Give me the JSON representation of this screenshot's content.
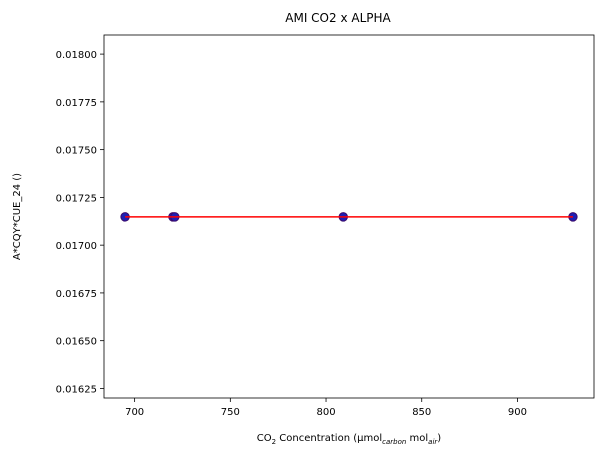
{
  "chart_data": {
    "type": "scatter",
    "title": "AMI CO2 x ALPHA",
    "xlabel": {
      "parts": [
        {
          "text": "CO",
          "style": "normal"
        },
        {
          "text": "2",
          "style": "sub"
        },
        {
          "text": " Concentration (μmol",
          "style": "normal"
        },
        {
          "text": "carbon",
          "style": "sub-italic"
        },
        {
          "text": " mol",
          "style": "normal"
        },
        {
          "text": "air",
          "style": "sub-italic"
        },
        {
          "text": ")",
          "style": "normal"
        }
      ]
    },
    "ylabel": "A*CQY*CUE_24 ()",
    "xlim": [
      684,
      940
    ],
    "ylim": [
      0.0162,
      0.0181
    ],
    "xticks": [
      {
        "value": 700,
        "label": "700"
      },
      {
        "value": 750,
        "label": "750"
      },
      {
        "value": 800,
        "label": "800"
      },
      {
        "value": 850,
        "label": "850"
      },
      {
        "value": 900,
        "label": "900"
      }
    ],
    "yticks": [
      {
        "value": 0.01625,
        "label": "0.01625"
      },
      {
        "value": 0.0165,
        "label": "0.01650"
      },
      {
        "value": 0.01675,
        "label": "0.01675"
      },
      {
        "value": 0.017,
        "label": "0.01700"
      },
      {
        "value": 0.01725,
        "label": "0.01725"
      },
      {
        "value": 0.0175,
        "label": "0.01750"
      },
      {
        "value": 0.01775,
        "label": "0.01775"
      },
      {
        "value": 0.018,
        "label": "0.01800"
      }
    ],
    "grid": false,
    "series": [
      {
        "kind": "scatter",
        "color": "#1f1fb4",
        "edge_color": "#3a0a6a",
        "x": [
          695,
          720,
          721,
          809,
          929
        ],
        "y": [
          0.017148,
          0.017148,
          0.017148,
          0.017148,
          0.017148
        ]
      },
      {
        "kind": "line",
        "color": "#ff0000",
        "x": [
          695,
          929
        ],
        "y": [
          0.017148,
          0.017148
        ]
      }
    ]
  }
}
